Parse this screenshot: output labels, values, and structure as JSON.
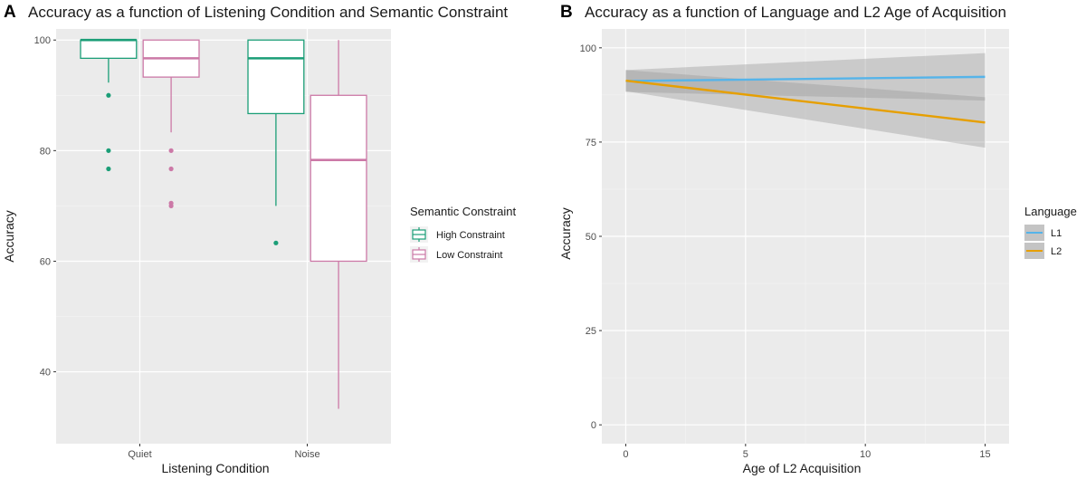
{
  "chart_data": [
    {
      "panel_label": "A",
      "type": "box",
      "title": "Accuracy as a function of Listening Condition and Semantic Constraint",
      "xlabel": "Listening Condition",
      "ylabel": "Accuracy",
      "categories": [
        "Quiet",
        "Noise"
      ],
      "ylim": [
        27,
        102
      ],
      "yticks": [
        40,
        60,
        80,
        100
      ],
      "legend": {
        "title": "Semantic Constraint",
        "position": "right"
      },
      "series": [
        {
          "name": "High Constraint",
          "color": "#1b9e77",
          "boxes": [
            {
              "category": "Quiet",
              "min": 92.3,
              "q1": 96.7,
              "median": 100,
              "q3": 100,
              "max": 100,
              "outliers": [
                90,
                80,
                76.7
              ]
            },
            {
              "category": "Noise",
              "min": 70,
              "q1": 86.7,
              "median": 96.7,
              "q3": 100,
              "max": 100,
              "outliers": [
                63.3
              ]
            }
          ]
        },
        {
          "name": "Low Constraint",
          "color": "#cc79a7",
          "boxes": [
            {
              "category": "Quiet",
              "min": 83.3,
              "q1": 93.3,
              "median": 96.7,
              "q3": 100,
              "max": 100,
              "outliers": [
                80,
                76.7,
                70.5,
                70
              ]
            },
            {
              "category": "Noise",
              "min": 33.3,
              "q1": 60,
              "median": 78.3,
              "q3": 90,
              "max": 100,
              "outliers": []
            }
          ]
        }
      ]
    },
    {
      "panel_label": "B",
      "type": "line",
      "title": "Accuracy as a function of Language and L2 Age of Acquisition",
      "xlabel": "Age of L2 Acquisition",
      "ylabel": "Accuracy",
      "xlim": [
        -1,
        16
      ],
      "ylim": [
        -5,
        105
      ],
      "xticks": [
        0,
        5,
        10,
        15
      ],
      "yticks": [
        0,
        25,
        50,
        75,
        100
      ],
      "legend": {
        "title": "Language",
        "position": "right"
      },
      "series": [
        {
          "name": "L1",
          "color": "#56b4e9",
          "x": [
            0,
            15
          ],
          "y": [
            91.2,
            92.3
          ],
          "ci_lower": [
            88.3,
            86.0
          ],
          "ci_upper": [
            94.1,
            98.6
          ]
        },
        {
          "name": "L2",
          "color": "#e69f00",
          "x": [
            0,
            15
          ],
          "y": [
            91.3,
            80.2
          ],
          "ci_lower": [
            88.5,
            73.5
          ],
          "ci_upper": [
            94.1,
            86.9
          ]
        }
      ]
    }
  ]
}
